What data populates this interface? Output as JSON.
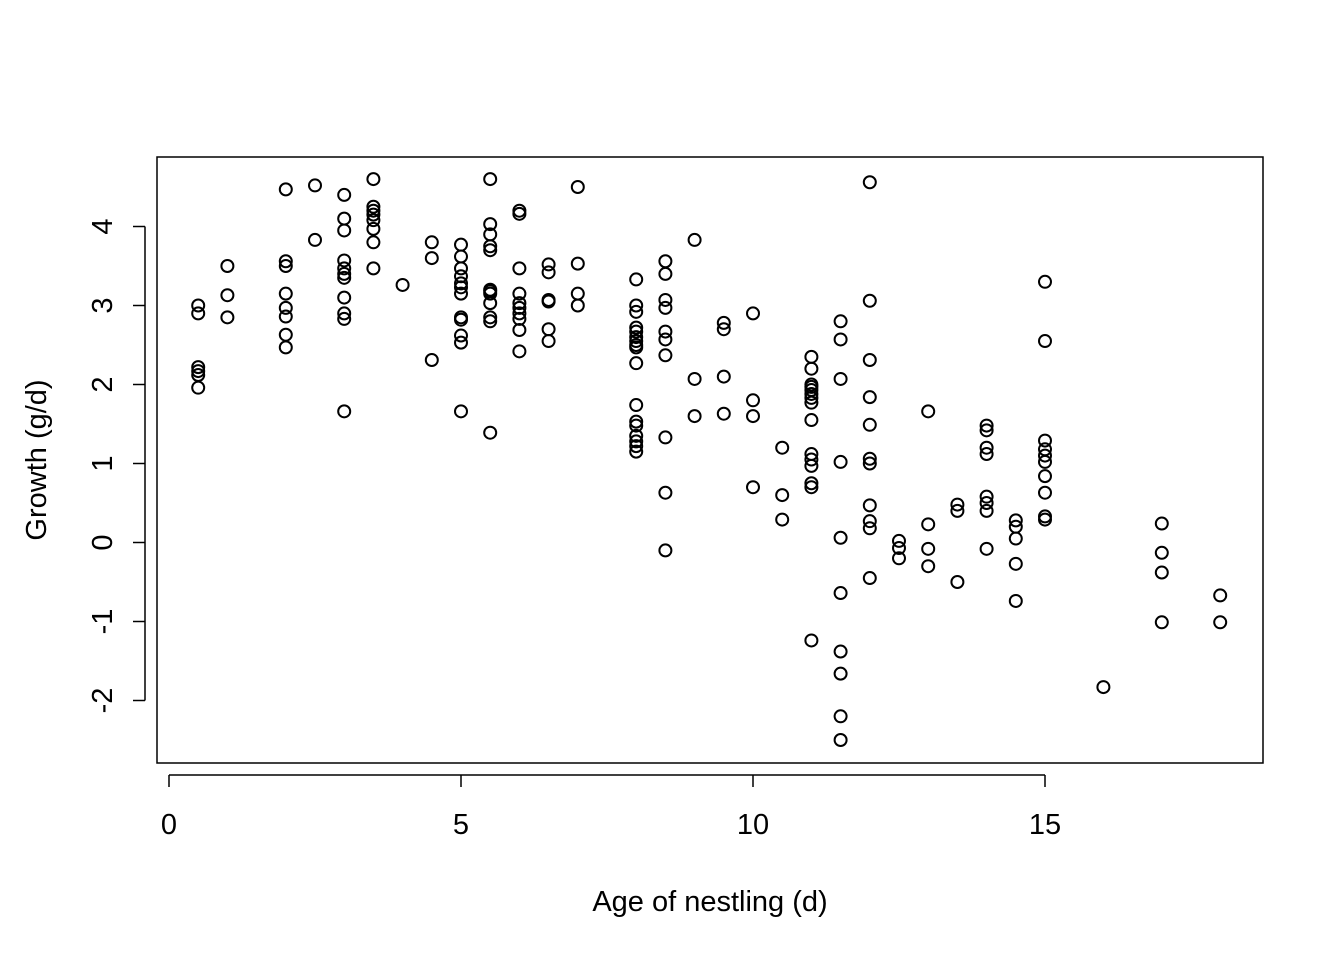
{
  "chart_data": {
    "type": "scatter",
    "title": "",
    "xlabel": "Age of nestling (d)",
    "ylabel": "Growth (g/d)",
    "xlim": [
      0,
      18
    ],
    "ylim": [
      -2.5,
      4.6
    ],
    "xticks": [
      0,
      5,
      10,
      15
    ],
    "yticks": [
      -2,
      -1,
      0,
      1,
      2,
      3,
      4
    ],
    "grid": false,
    "legend": "none",
    "marker": "open-circle",
    "color": "#000000",
    "points": [
      [
        0.5,
        3.0
      ],
      [
        0.5,
        2.9
      ],
      [
        0.5,
        2.22
      ],
      [
        0.5,
        2.17
      ],
      [
        0.5,
        2.12
      ],
      [
        0.5,
        1.96
      ],
      [
        1.0,
        3.5
      ],
      [
        1.0,
        3.13
      ],
      [
        1.0,
        2.85
      ],
      [
        2.0,
        4.47
      ],
      [
        2.0,
        3.56
      ],
      [
        2.0,
        3.5
      ],
      [
        2.0,
        3.15
      ],
      [
        2.0,
        2.97
      ],
      [
        2.0,
        2.86
      ],
      [
        2.0,
        2.63
      ],
      [
        2.0,
        2.47
      ],
      [
        2.5,
        4.52
      ],
      [
        2.5,
        3.83
      ],
      [
        3.0,
        4.4
      ],
      [
        3.0,
        4.1
      ],
      [
        3.0,
        3.95
      ],
      [
        3.0,
        3.57
      ],
      [
        3.0,
        3.47
      ],
      [
        3.0,
        3.4
      ],
      [
        3.0,
        3.35
      ],
      [
        3.0,
        3.1
      ],
      [
        3.0,
        2.9
      ],
      [
        3.0,
        2.83
      ],
      [
        3.0,
        1.66
      ],
      [
        3.5,
        4.6
      ],
      [
        3.5,
        4.25
      ],
      [
        3.5,
        4.2
      ],
      [
        3.5,
        4.15
      ],
      [
        3.5,
        4.08
      ],
      [
        3.5,
        3.97
      ],
      [
        3.5,
        3.8
      ],
      [
        3.5,
        3.47
      ],
      [
        4.0,
        3.26
      ],
      [
        4.5,
        3.8
      ],
      [
        4.5,
        3.6
      ],
      [
        4.5,
        2.31
      ],
      [
        5.0,
        3.77
      ],
      [
        5.0,
        3.62
      ],
      [
        5.0,
        3.47
      ],
      [
        5.0,
        3.37
      ],
      [
        5.0,
        3.28
      ],
      [
        5.0,
        3.23
      ],
      [
        5.0,
        3.15
      ],
      [
        5.0,
        2.85
      ],
      [
        5.0,
        2.82
      ],
      [
        5.0,
        2.62
      ],
      [
        5.0,
        2.53
      ],
      [
        5.0,
        1.66
      ],
      [
        5.5,
        4.6
      ],
      [
        5.5,
        4.03
      ],
      [
        5.5,
        3.9
      ],
      [
        5.5,
        3.75
      ],
      [
        5.5,
        3.7
      ],
      [
        5.5,
        3.2
      ],
      [
        5.5,
        3.18
      ],
      [
        5.5,
        3.15
      ],
      [
        5.5,
        3.03
      ],
      [
        5.5,
        2.85
      ],
      [
        5.5,
        2.8
      ],
      [
        5.5,
        1.39
      ],
      [
        6.0,
        4.2
      ],
      [
        6.0,
        4.16
      ],
      [
        6.0,
        3.47
      ],
      [
        6.0,
        3.15
      ],
      [
        6.0,
        3.03
      ],
      [
        6.0,
        2.97
      ],
      [
        6.0,
        2.9
      ],
      [
        6.0,
        2.83
      ],
      [
        6.0,
        2.69
      ],
      [
        6.0,
        2.42
      ],
      [
        6.5,
        3.52
      ],
      [
        6.5,
        3.42
      ],
      [
        6.5,
        3.07
      ],
      [
        6.5,
        3.05
      ],
      [
        6.5,
        2.7
      ],
      [
        6.5,
        2.55
      ],
      [
        7.0,
        4.5
      ],
      [
        7.0,
        3.53
      ],
      [
        7.0,
        3.15
      ],
      [
        7.0,
        3.0
      ],
      [
        8.0,
        3.33
      ],
      [
        8.0,
        3.0
      ],
      [
        8.0,
        2.92
      ],
      [
        8.0,
        2.72
      ],
      [
        8.0,
        2.67
      ],
      [
        8.0,
        2.6
      ],
      [
        8.0,
        2.55
      ],
      [
        8.0,
        2.5
      ],
      [
        8.0,
        2.47
      ],
      [
        8.0,
        2.27
      ],
      [
        8.0,
        1.74
      ],
      [
        8.0,
        1.53
      ],
      [
        8.0,
        1.48
      ],
      [
        8.0,
        1.35
      ],
      [
        8.0,
        1.28
      ],
      [
        8.0,
        1.22
      ],
      [
        8.0,
        1.15
      ],
      [
        8.5,
        3.56
      ],
      [
        8.5,
        3.4
      ],
      [
        8.5,
        3.07
      ],
      [
        8.5,
        2.97
      ],
      [
        8.5,
        2.67
      ],
      [
        8.5,
        2.57
      ],
      [
        8.5,
        2.37
      ],
      [
        8.5,
        1.33
      ],
      [
        8.5,
        0.63
      ],
      [
        8.5,
        -0.1
      ],
      [
        9.0,
        3.83
      ],
      [
        9.0,
        2.07
      ],
      [
        9.0,
        1.6
      ],
      [
        9.5,
        2.78
      ],
      [
        9.5,
        2.7
      ],
      [
        9.5,
        2.1
      ],
      [
        9.5,
        1.63
      ],
      [
        10.0,
        2.9
      ],
      [
        10.0,
        1.8
      ],
      [
        10.0,
        1.6
      ],
      [
        10.0,
        0.7
      ],
      [
        10.5,
        1.2
      ],
      [
        10.5,
        0.6
      ],
      [
        10.5,
        0.29
      ],
      [
        11.0,
        2.35
      ],
      [
        11.0,
        2.2
      ],
      [
        11.0,
        2.0
      ],
      [
        11.0,
        1.97
      ],
      [
        11.0,
        1.93
      ],
      [
        11.0,
        1.88
      ],
      [
        11.0,
        1.83
      ],
      [
        11.0,
        1.77
      ],
      [
        11.0,
        1.55
      ],
      [
        11.0,
        1.12
      ],
      [
        11.0,
        1.05
      ],
      [
        11.0,
        0.97
      ],
      [
        11.0,
        0.75
      ],
      [
        11.0,
        0.7
      ],
      [
        11.0,
        -1.24
      ],
      [
        11.5,
        2.8
      ],
      [
        11.5,
        2.57
      ],
      [
        11.5,
        2.07
      ],
      [
        11.5,
        1.02
      ],
      [
        11.5,
        0.06
      ],
      [
        11.5,
        -0.64
      ],
      [
        11.5,
        -1.38
      ],
      [
        11.5,
        -1.66
      ],
      [
        11.5,
        -2.2
      ],
      [
        11.5,
        -2.5
      ],
      [
        12.0,
        4.56
      ],
      [
        12.0,
        3.06
      ],
      [
        12.0,
        2.31
      ],
      [
        12.0,
        1.84
      ],
      [
        12.0,
        1.49
      ],
      [
        12.0,
        1.06
      ],
      [
        12.0,
        1.0
      ],
      [
        12.0,
        0.47
      ],
      [
        12.0,
        0.27
      ],
      [
        12.0,
        0.18
      ],
      [
        12.0,
        -0.45
      ],
      [
        12.5,
        0.02
      ],
      [
        12.5,
        -0.07
      ],
      [
        12.5,
        -0.2
      ],
      [
        13.0,
        1.66
      ],
      [
        13.0,
        0.23
      ],
      [
        13.0,
        -0.08
      ],
      [
        13.0,
        -0.3
      ],
      [
        13.5,
        0.48
      ],
      [
        13.5,
        0.4
      ],
      [
        13.5,
        -0.5
      ],
      [
        14.0,
        1.48
      ],
      [
        14.0,
        1.42
      ],
      [
        14.0,
        1.2
      ],
      [
        14.0,
        1.12
      ],
      [
        14.0,
        0.58
      ],
      [
        14.0,
        0.5
      ],
      [
        14.0,
        0.4
      ],
      [
        14.0,
        -0.08
      ],
      [
        14.5,
        0.28
      ],
      [
        14.5,
        0.2
      ],
      [
        14.5,
        0.05
      ],
      [
        14.5,
        -0.27
      ],
      [
        14.5,
        -0.74
      ],
      [
        15.0,
        3.3
      ],
      [
        15.0,
        2.55
      ],
      [
        15.0,
        1.29
      ],
      [
        15.0,
        1.18
      ],
      [
        15.0,
        1.1
      ],
      [
        15.0,
        1.02
      ],
      [
        15.0,
        0.84
      ],
      [
        15.0,
        0.63
      ],
      [
        15.0,
        0.33
      ],
      [
        15.0,
        0.29
      ],
      [
        16.0,
        -1.83
      ],
      [
        17.0,
        0.24
      ],
      [
        17.0,
        -0.13
      ],
      [
        17.0,
        -0.38
      ],
      [
        17.0,
        -1.01
      ],
      [
        18.0,
        -0.67
      ],
      [
        18.0,
        -1.01
      ]
    ]
  }
}
